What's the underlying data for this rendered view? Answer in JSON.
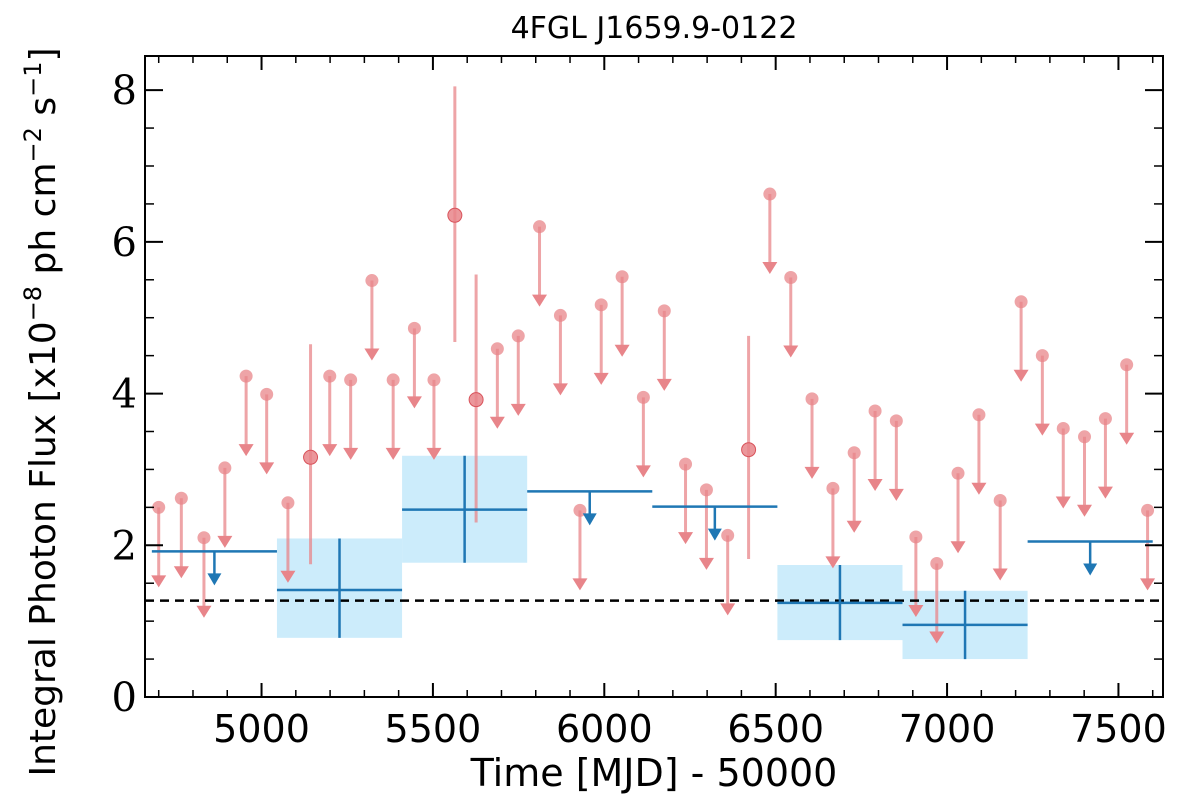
{
  "chart_data": {
    "type": "scatter",
    "title": "4FGL J1659.9-0122",
    "xlabel": "Time [MJD] - 50000",
    "ylabel": "Integral Photon Flux [x10",
    "ylabel_exp": "−8",
    "ylabel_mid": " ph cm",
    "ylabel_exp2": "−2",
    "ylabel_end": " s",
    "ylabel_exp3": "−1",
    "ylabel_close": "]",
    "xlim": [
      4660,
      7630
    ],
    "ylim": [
      0,
      8.45
    ],
    "x_ticks": [
      5000,
      5500,
      6000,
      6500,
      7000,
      7500
    ],
    "y_ticks": [
      0,
      2,
      4,
      6,
      8
    ],
    "mean_flux": 1.27,
    "colors": {
      "fine": "#e8858a",
      "coarse": "#1f77b4",
      "band": "#ccecfb",
      "mean": "#000000"
    },
    "series": [
      {
        "points": [
          {
            "x": 4700,
            "y": 2.5,
            "ul": true
          },
          {
            "x": 4766,
            "y": 2.62,
            "ul": true
          },
          {
            "x": 4832,
            "y": 2.1,
            "ul": true
          },
          {
            "x": 4893,
            "y": 3.02,
            "ul": true
          },
          {
            "x": 4955,
            "y": 4.23,
            "ul": true
          },
          {
            "x": 5015,
            "y": 3.99,
            "ul": true
          },
          {
            "x": 5077,
            "y": 2.56,
            "ul": true
          },
          {
            "x": 5143,
            "y": 3.16,
            "ul": false,
            "ylo": 1.75,
            "yhi": 4.65
          },
          {
            "x": 5199,
            "y": 4.23,
            "ul": true
          },
          {
            "x": 5260,
            "y": 4.18,
            "ul": true
          },
          {
            "x": 5322,
            "y": 5.49,
            "ul": true
          },
          {
            "x": 5384,
            "y": 4.18,
            "ul": true
          },
          {
            "x": 5446,
            "y": 4.86,
            "ul": true
          },
          {
            "x": 5503,
            "y": 4.18,
            "ul": true
          },
          {
            "x": 5564,
            "y": 6.35,
            "ul": false,
            "ylo": 4.68,
            "yhi": 8.05
          },
          {
            "x": 5626,
            "y": 3.92,
            "ul": false,
            "ylo": 2.3,
            "yhi": 5.57
          },
          {
            "x": 5688,
            "y": 4.59,
            "ul": true
          },
          {
            "x": 5749,
            "y": 4.76,
            "ul": true
          },
          {
            "x": 5811,
            "y": 6.2,
            "ul": true
          },
          {
            "x": 5872,
            "y": 5.03,
            "ul": true
          },
          {
            "x": 5929,
            "y": 2.46,
            "ul": true
          },
          {
            "x": 5991,
            "y": 5.17,
            "ul": true
          },
          {
            "x": 6052,
            "y": 5.54,
            "ul": true
          },
          {
            "x": 6114,
            "y": 3.95,
            "ul": true
          },
          {
            "x": 6175,
            "y": 5.09,
            "ul": true
          },
          {
            "x": 6237,
            "y": 3.07,
            "ul": true
          },
          {
            "x": 6298,
            "y": 2.73,
            "ul": true
          },
          {
            "x": 6360,
            "y": 2.13,
            "ul": true
          },
          {
            "x": 6421,
            "y": 3.26,
            "ul": false,
            "ylo": 1.82,
            "yhi": 4.76
          },
          {
            "x": 6483,
            "y": 6.63,
            "ul": true
          },
          {
            "x": 6544,
            "y": 5.53,
            "ul": true
          },
          {
            "x": 6606,
            "y": 3.93,
            "ul": true
          },
          {
            "x": 6667,
            "y": 2.75,
            "ul": true
          },
          {
            "x": 6729,
            "y": 3.22,
            "ul": true
          },
          {
            "x": 6790,
            "y": 3.77,
            "ul": true
          },
          {
            "x": 6852,
            "y": 3.64,
            "ul": true
          },
          {
            "x": 6909,
            "y": 2.11,
            "ul": true
          },
          {
            "x": 6970,
            "y": 1.76,
            "ul": true
          },
          {
            "x": 7032,
            "y": 2.95,
            "ul": true
          },
          {
            "x": 7093,
            "y": 3.72,
            "ul": true
          },
          {
            "x": 7155,
            "y": 2.59,
            "ul": true
          },
          {
            "x": 7216,
            "y": 5.21,
            "ul": true
          },
          {
            "x": 7278,
            "y": 4.5,
            "ul": true
          },
          {
            "x": 7339,
            "y": 3.54,
            "ul": true
          },
          {
            "x": 7401,
            "y": 3.43,
            "ul": true
          },
          {
            "x": 7462,
            "y": 3.67,
            "ul": true
          },
          {
            "x": 7524,
            "y": 4.38,
            "ul": true
          },
          {
            "x": 7585,
            "y": 2.46,
            "ul": true
          }
        ]
      },
      {
        "bins": [
          {
            "x0": 4680,
            "x1": 5045,
            "y": 1.92,
            "ul": true
          },
          {
            "x0": 5045,
            "x1": 5410,
            "y": 1.41,
            "ul": false,
            "ylo": 0.78,
            "yhi": 2.09
          },
          {
            "x0": 5410,
            "x1": 5775,
            "y": 2.47,
            "ul": false,
            "ylo": 1.77,
            "yhi": 3.18
          },
          {
            "x0": 5775,
            "x1": 6140,
            "y": 2.71,
            "ul": true
          },
          {
            "x0": 6140,
            "x1": 6505,
            "y": 2.51,
            "ul": true
          },
          {
            "x0": 6505,
            "x1": 6870,
            "y": 1.24,
            "ul": false,
            "ylo": 0.75,
            "yhi": 1.74
          },
          {
            "x0": 6870,
            "x1": 7235,
            "y": 0.95,
            "ul": false,
            "ylo": 0.5,
            "yhi": 1.4
          },
          {
            "x0": 7235,
            "x1": 7600,
            "y": 2.05,
            "ul": true
          }
        ]
      }
    ]
  }
}
